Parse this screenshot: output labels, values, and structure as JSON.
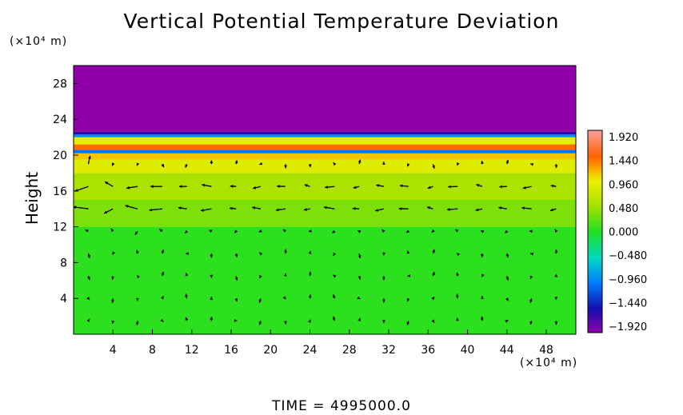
{
  "chart_data": {
    "type": "heatmap",
    "title": "Vertical Potential Temperature Deviation",
    "xlabel": "",
    "ylabel": "Height",
    "x_unit": "(×10⁴ m)",
    "y_unit": "(×10⁴ m)",
    "xlim": [
      0,
      51
    ],
    "ylim": [
      0,
      30
    ],
    "x_ticks": [
      4,
      8,
      12,
      16,
      20,
      24,
      28,
      32,
      36,
      40,
      44,
      48
    ],
    "y_ticks": [
      4,
      8,
      12,
      16,
      20,
      24,
      28
    ],
    "bands": [
      {
        "y0": 0,
        "y1": 12,
        "value": 0.05
      },
      {
        "y0": 12,
        "y1": 15,
        "value": 0.35
      },
      {
        "y0": 15,
        "y1": 18,
        "value": 0.55
      },
      {
        "y0": 18,
        "y1": 19.5,
        "value": 0.85
      },
      {
        "y0": 19.5,
        "y1": 20.2,
        "value": 1.1
      },
      {
        "y0": 20.2,
        "y1": 20.6,
        "value": -1.0
      },
      {
        "y0": 20.6,
        "y1": 21.2,
        "value": 1.4
      },
      {
        "y0": 21.2,
        "y1": 22.0,
        "value": 0.9
      },
      {
        "y0": 22.0,
        "y1": 22.3,
        "value": -0.9
      },
      {
        "y0": 22.3,
        "y1": 22.6,
        "value": -1.5
      },
      {
        "y0": 22.6,
        "y1": 30,
        "value": -1.92
      }
    ],
    "colorbar": {
      "min": -1.92,
      "max": 1.92,
      "labels": [
        "1.920",
        "1.440",
        "0.960",
        "0.480",
        "0.000",
        "−0.480",
        "−0.960",
        "−1.440",
        "−1.920"
      ]
    },
    "vector_field": {
      "x_step": 2.5,
      "y_step": 2.5,
      "note_free": true
    },
    "time_label": "TIME = 4995000.0"
  }
}
